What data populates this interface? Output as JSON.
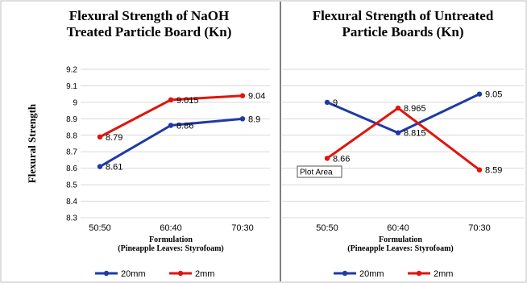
{
  "chart_data": [
    {
      "type": "line",
      "title_lines": [
        "Flexural Strength of NaOH",
        "Treated Particle Board (Kn)"
      ],
      "ylabel": "Flexural Strength",
      "xlabel_lines": [
        "Formulation",
        "(Pineapple Leaves: Styrofoam)"
      ],
      "categories": [
        "50:50",
        "60:40",
        "70:30"
      ],
      "ylim": [
        8.3,
        9.2
      ],
      "yticks": [
        "8.3",
        "8.4",
        "8.5",
        "8.6",
        "8.7",
        "8.8",
        "8.9",
        "9",
        "9.1",
        "9.2"
      ],
      "grid": true,
      "legend_position": "bottom",
      "series": [
        {
          "name": "20mm",
          "color": "#1f3aa6",
          "values": [
            8.61,
            8.86,
            8.9
          ],
          "labels": [
            "8.61",
            "8.86",
            "8.9"
          ]
        },
        {
          "name": "2mm",
          "color": "#e0150d",
          "values": [
            8.79,
            9.015,
            9.04
          ],
          "labels": [
            "8.79",
            "9.015",
            "9.04"
          ]
        }
      ]
    },
    {
      "type": "line",
      "title_lines": [
        "Flexural Strength of Untreated",
        "Particle Boards (Kn)"
      ],
      "xlabel_lines": [
        "Formulation",
        "(Pineapple Leaves: Styrofoam)"
      ],
      "categories": [
        "50:50",
        "60:40",
        "70:30"
      ],
      "ylim": [
        8.3,
        9.2
      ],
      "grid": true,
      "legend_position": "bottom",
      "tooltip": "Plot Area",
      "series": [
        {
          "name": "20mm",
          "color": "#1f3aa6",
          "values": [
            9.0,
            8.815,
            9.05
          ],
          "labels": [
            "9",
            "8.815",
            "9.05"
          ]
        },
        {
          "name": "2mm",
          "color": "#e0150d",
          "values": [
            8.66,
            8.965,
            8.59
          ],
          "labels": [
            "8.66",
            "8.965",
            "8.59"
          ]
        }
      ]
    }
  ]
}
